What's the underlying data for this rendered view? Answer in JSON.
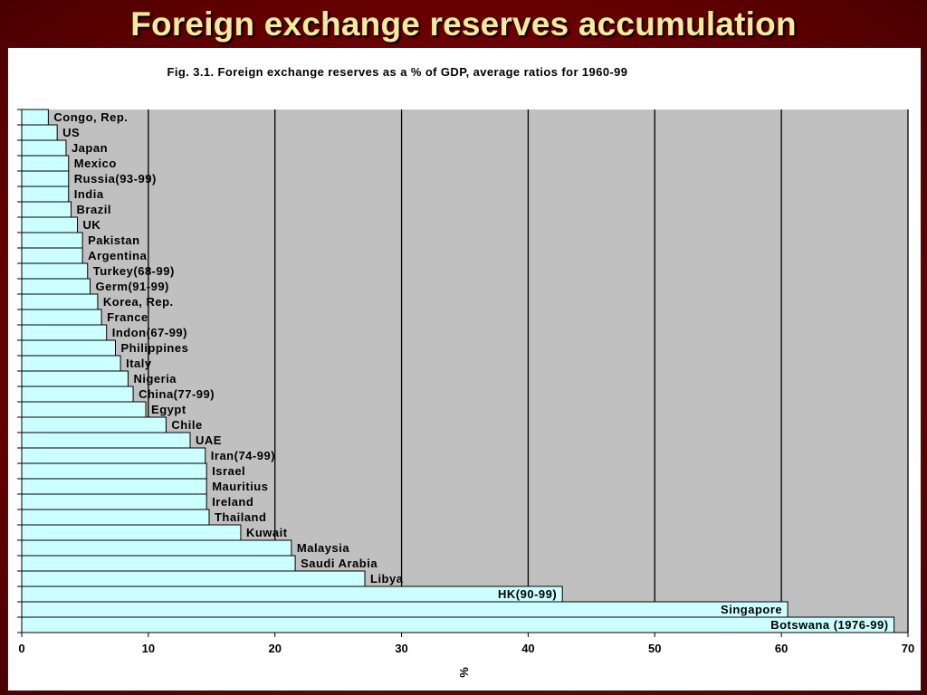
{
  "slide": {
    "title": "Foreign exchange reserves accumulation"
  },
  "colors": {
    "background": "#7a0000",
    "title_text": "#f7e9a0",
    "plot_area": "#c0c0c0",
    "bar_fill": "#ccffff",
    "bar_stroke": "#000000",
    "gridline": "#000000"
  },
  "chart_data": {
    "type": "bar",
    "orientation": "horizontal",
    "title": "Fig. 3.1. Foreign exchange reserves as a % of GDP, average ratios for 1960-99",
    "xlabel": "%",
    "ylabel": "",
    "xlim": [
      0,
      70
    ],
    "xticks": [
      0,
      10,
      20,
      30,
      40,
      50,
      60,
      70
    ],
    "grid": "vertical lines at major ticks",
    "legend": "none",
    "bar_label_position": "outside end (inside end for the three largest bars)",
    "categories": [
      "Congo, Rep.",
      "US",
      "Japan",
      "Mexico",
      "Russia(93-99)",
      "India",
      "Brazil",
      "UK",
      "Pakistan",
      "Argentina",
      "Turkey(68-99)",
      "Germ(91-99)",
      "Korea, Rep.",
      "France",
      "Indon(67-99)",
      "Philippines",
      "Italy",
      "Nigeria",
      "China(77-99)",
      "Egypt",
      "Chile",
      "UAE",
      "Iran(74-99)",
      "Israel",
      "Mauritius",
      "Ireland",
      "Thailand",
      "Kuwait",
      "Malaysia",
      "Saudi Arabia",
      "Libya",
      "HK(90-99)",
      "Singapore",
      "Botswana (1976-99)"
    ],
    "values": [
      2.1,
      2.8,
      3.5,
      3.7,
      3.7,
      3.7,
      3.9,
      4.4,
      4.8,
      4.8,
      5.2,
      5.4,
      6.0,
      6.3,
      6.7,
      7.4,
      7.8,
      8.4,
      8.8,
      9.8,
      11.4,
      13.3,
      14.5,
      14.6,
      14.6,
      14.6,
      14.8,
      17.3,
      21.3,
      21.6,
      27.1,
      42.7,
      60.5,
      68.9
    ]
  }
}
